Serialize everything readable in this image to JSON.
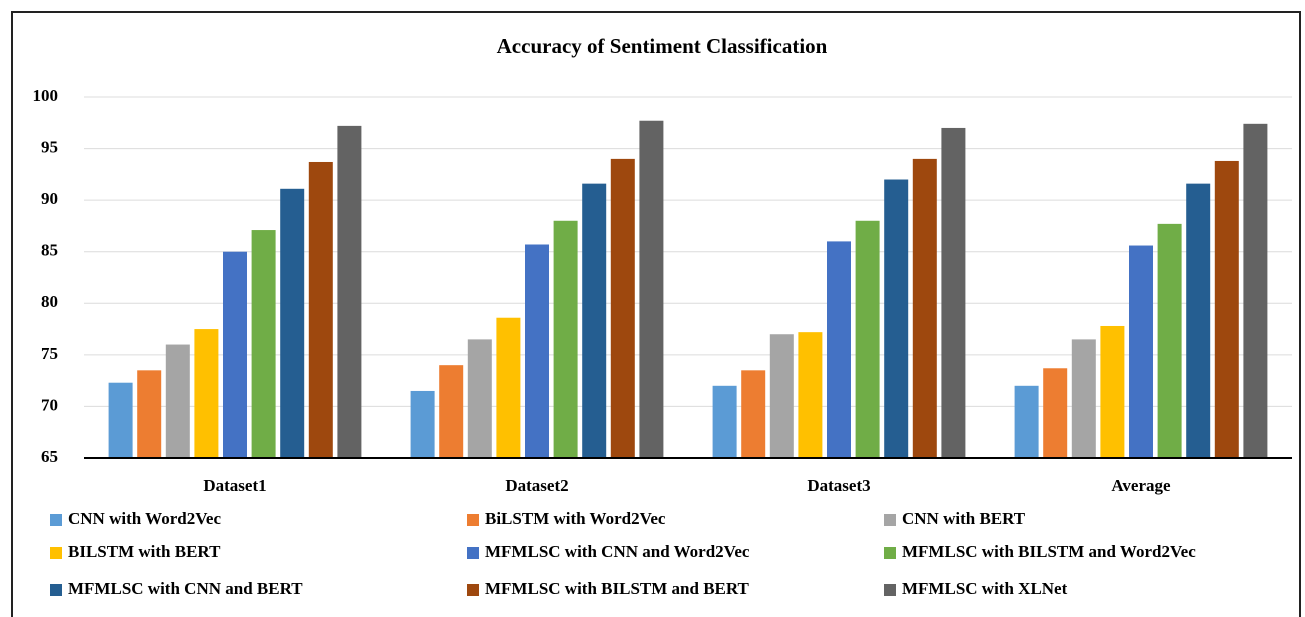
{
  "chart_data": {
    "type": "bar",
    "title": "Accuracy of Sentiment Classification",
    "categories": [
      "Dataset1",
      "Dataset2",
      "Dataset3",
      "Average"
    ],
    "series": [
      {
        "name": "CNN with Word2Vec",
        "color": "#5b9bd5",
        "values": [
          72.3,
          71.5,
          72,
          72
        ]
      },
      {
        "name": "BiLSTM with Word2Vec",
        "color": "#ed7d31",
        "values": [
          73.5,
          74,
          73.5,
          73.7
        ]
      },
      {
        "name": "CNN with BERT",
        "color": "#a5a5a5",
        "values": [
          76,
          76.5,
          77,
          76.5
        ]
      },
      {
        "name": "BILSTM with BERT",
        "color": "#ffc000",
        "values": [
          77.5,
          78.6,
          77.2,
          77.8
        ]
      },
      {
        "name": "MFMLSC with CNN and Word2Vec",
        "color": "#4472c4",
        "values": [
          85,
          85.7,
          86,
          85.6
        ]
      },
      {
        "name": "MFMLSC with BILSTM and Word2Vec",
        "color": "#70ad47",
        "values": [
          87.1,
          88,
          88,
          87.7
        ]
      },
      {
        "name": "MFMLSC with CNN and BERT",
        "color": "#255e91",
        "values": [
          91.1,
          91.6,
          92,
          91.6
        ]
      },
      {
        "name": "MFMLSC with BILSTM and BERT",
        "color": "#9e480e",
        "values": [
          93.7,
          94,
          94,
          93.8
        ]
      },
      {
        "name": "MFMLSC with XLNet",
        "color": "#636363",
        "values": [
          97.2,
          97.7,
          97,
          97.4
        ]
      }
    ],
    "ylim": [
      65,
      100
    ],
    "yticks": [
      65,
      70,
      75,
      80,
      85,
      90,
      95,
      100
    ],
    "grid": true,
    "legend": "bottom"
  }
}
